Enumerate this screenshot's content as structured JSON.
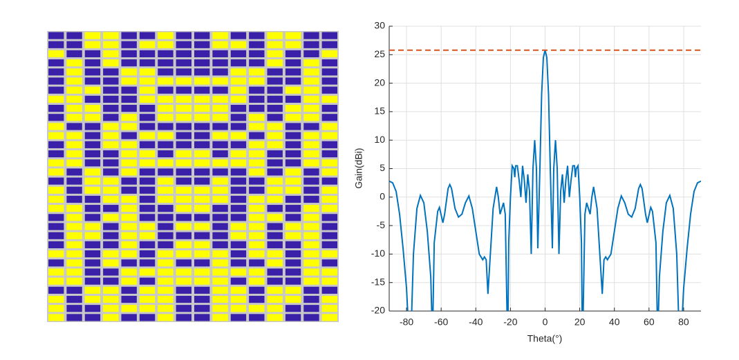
{
  "chart_data": [
    {
      "type": "heatmap",
      "colors": [
        "#ffff00",
        "#3a1fa8"
      ],
      "z": [
        [
          1,
          1,
          0,
          0,
          1,
          1,
          0,
          1,
          1,
          0,
          1,
          1,
          0,
          0,
          1,
          1
        ],
        [
          1,
          1,
          0,
          0,
          1,
          0,
          0,
          1,
          1,
          0,
          0,
          1,
          0,
          0,
          1,
          1
        ],
        [
          0,
          1,
          1,
          0,
          1,
          1,
          1,
          1,
          1,
          1,
          1,
          1,
          0,
          1,
          1,
          0
        ],
        [
          1,
          0,
          1,
          0,
          1,
          1,
          1,
          1,
          1,
          1,
          1,
          1,
          0,
          1,
          0,
          1
        ],
        [
          1,
          0,
          1,
          1,
          0,
          0,
          1,
          1,
          1,
          1,
          0,
          0,
          1,
          1,
          0,
          1
        ],
        [
          1,
          0,
          1,
          1,
          0,
          0,
          0,
          0,
          0,
          0,
          0,
          0,
          1,
          1,
          0,
          1
        ],
        [
          1,
          0,
          0,
          1,
          1,
          0,
          1,
          1,
          1,
          1,
          0,
          1,
          1,
          0,
          0,
          1
        ],
        [
          0,
          0,
          1,
          1,
          1,
          0,
          0,
          0,
          0,
          0,
          0,
          1,
          1,
          1,
          0,
          0
        ],
        [
          1,
          0,
          0,
          1,
          1,
          1,
          0,
          0,
          0,
          0,
          1,
          1,
          1,
          0,
          0,
          1
        ],
        [
          1,
          0,
          0,
          1,
          0,
          1,
          0,
          0,
          0,
          0,
          1,
          0,
          1,
          0,
          0,
          1
        ],
        [
          0,
          1,
          1,
          0,
          0,
          1,
          1,
          1,
          1,
          1,
          1,
          0,
          0,
          1,
          1,
          0
        ],
        [
          0,
          0,
          1,
          0,
          1,
          0,
          0,
          1,
          1,
          0,
          0,
          1,
          0,
          1,
          0,
          0
        ],
        [
          1,
          0,
          1,
          0,
          0,
          1,
          1,
          1,
          1,
          1,
          1,
          0,
          0,
          1,
          0,
          1
        ],
        [
          1,
          0,
          1,
          1,
          0,
          0,
          1,
          0,
          0,
          1,
          0,
          0,
          1,
          1,
          0,
          1
        ],
        [
          0,
          0,
          1,
          1,
          0,
          0,
          0,
          0,
          0,
          0,
          0,
          0,
          1,
          1,
          0,
          0
        ],
        [
          0,
          1,
          0,
          1,
          0,
          1,
          1,
          1,
          1,
          1,
          1,
          0,
          1,
          0,
          1,
          0
        ],
        [
          1,
          1,
          0,
          0,
          1,
          1,
          0,
          1,
          1,
          0,
          1,
          1,
          0,
          0,
          1,
          1
        ],
        [
          0,
          1,
          0,
          0,
          1,
          1,
          0,
          0,
          0,
          0,
          1,
          1,
          0,
          0,
          1,
          0
        ],
        [
          0,
          1,
          1,
          0,
          0,
          1,
          0,
          0,
          0,
          0,
          1,
          0,
          0,
          1,
          1,
          0
        ],
        [
          0,
          0,
          1,
          1,
          0,
          1,
          1,
          0,
          0,
          1,
          1,
          0,
          1,
          1,
          0,
          0
        ],
        [
          1,
          0,
          1,
          0,
          0,
          1,
          1,
          1,
          1,
          1,
          1,
          0,
          0,
          1,
          0,
          1
        ],
        [
          1,
          0,
          0,
          1,
          0,
          0,
          1,
          0,
          0,
          1,
          0,
          0,
          1,
          0,
          0,
          1
        ],
        [
          1,
          0,
          0,
          1,
          0,
          0,
          1,
          1,
          1,
          1,
          0,
          0,
          1,
          0,
          0,
          1
        ],
        [
          1,
          0,
          1,
          1,
          0,
          1,
          1,
          0,
          0,
          1,
          1,
          0,
          1,
          1,
          0,
          1
        ],
        [
          0,
          0,
          1,
          0,
          0,
          1,
          0,
          0,
          0,
          0,
          1,
          0,
          0,
          1,
          0,
          0
        ],
        [
          1,
          0,
          1,
          0,
          1,
          1,
          0,
          1,
          1,
          0,
          1,
          1,
          0,
          1,
          0,
          1
        ],
        [
          0,
          0,
          1,
          1,
          0,
          0,
          0,
          0,
          0,
          0,
          0,
          0,
          1,
          1,
          0,
          0
        ],
        [
          0,
          0,
          1,
          1,
          0,
          1,
          0,
          0,
          0,
          0,
          1,
          0,
          1,
          1,
          0,
          0
        ],
        [
          1,
          1,
          0,
          0,
          1,
          0,
          0,
          1,
          1,
          0,
          0,
          1,
          0,
          0,
          1,
          1
        ],
        [
          0,
          1,
          0,
          0,
          1,
          0,
          0,
          1,
          1,
          0,
          0,
          1,
          0,
          0,
          1,
          0
        ],
        [
          0,
          1,
          1,
          0,
          0,
          0,
          0,
          1,
          1,
          0,
          0,
          0,
          0,
          1,
          1,
          0
        ],
        [
          0,
          1,
          1,
          0,
          1,
          1,
          0,
          1,
          1,
          0,
          1,
          1,
          0,
          1,
          1,
          0
        ]
      ]
    },
    {
      "type": "line",
      "xlabel": "Theta(°)",
      "ylabel": "Gain(dBi)",
      "xlim": [
        -90,
        90
      ],
      "ylim": [
        -20,
        30
      ],
      "xticks": [
        -80,
        -60,
        -40,
        -20,
        0,
        20,
        40,
        60,
        80
      ],
      "yticks": [
        -20,
        -15,
        -10,
        -5,
        0,
        5,
        10,
        15,
        20,
        25,
        30
      ],
      "grid": true,
      "reference_line": {
        "value": 25.8,
        "color": "#d95319"
      },
      "x": [
        -90,
        -88,
        -86,
        -84,
        -82,
        -80,
        -79,
        -77.5,
        -76,
        -74,
        -72,
        -70,
        -68,
        -66,
        -65,
        -64,
        -62,
        -61,
        -59,
        -58,
        -56,
        -55,
        -54,
        -52,
        -50,
        -48,
        -46,
        -44,
        -42,
        -40,
        -38,
        -36,
        -35,
        -34,
        -33,
        -32,
        -30,
        -28,
        -27,
        -26,
        -25,
        -24,
        -23,
        -22,
        -21.5,
        -21,
        -20,
        -19,
        -18,
        -17.5,
        -17,
        -16,
        -15,
        -14,
        -13,
        -12,
        -11,
        -10,
        -9,
        -8,
        -7,
        -6,
        -5,
        -4.2,
        -3,
        -2,
        -1,
        0,
        1,
        2,
        3,
        4.2,
        5,
        6,
        7,
        8,
        9,
        10,
        11,
        12,
        13,
        14,
        15,
        16,
        17,
        17.5,
        18,
        19,
        20,
        21,
        21.5,
        22,
        23,
        24,
        25,
        26,
        27,
        28,
        30,
        32,
        33,
        34,
        35,
        36,
        38,
        40,
        42,
        44,
        46,
        48,
        50,
        52,
        54,
        55,
        56,
        58,
        59,
        61,
        62,
        64,
        65,
        66,
        68,
        70,
        72,
        74,
        76,
        77.5,
        79,
        80,
        82,
        84,
        86,
        88,
        90
      ],
      "series": [
        {
          "name": "Gain",
          "color": "#0072bd",
          "values": [
            2.8,
            2.5,
            1,
            -3,
            -9,
            -16,
            -22,
            -25,
            -10,
            -2,
            0.3,
            -1,
            -6,
            -14,
            -25,
            -8,
            -2.5,
            -1.8,
            -4.5,
            -3,
            1.5,
            2.2,
            1.5,
            -2,
            -3.5,
            -3,
            -1,
            0.2,
            -2,
            -6,
            -10,
            -11,
            -10.5,
            -11,
            -17,
            -12,
            -2,
            1.8,
            0,
            -3,
            -2,
            -1,
            -3,
            -20,
            -25,
            -8,
            0,
            5.5,
            5,
            3.5,
            5.5,
            5.5,
            3,
            0,
            5.5,
            3,
            -1,
            4,
            1,
            -10,
            5,
            10,
            5,
            -9,
            5,
            18,
            24.5,
            25.8,
            24.5,
            18,
            5,
            -9,
            5,
            10,
            5,
            -10,
            1,
            4,
            -1,
            3,
            5.5,
            0,
            3,
            5.5,
            5.5,
            3.5,
            5,
            5.5,
            0,
            -8,
            -25,
            -20,
            -3,
            -1,
            -2,
            -3,
            0,
            1.8,
            -2,
            -12,
            -17,
            -11,
            -10.5,
            -11,
            -10,
            -6,
            -2,
            0.2,
            -1,
            -3,
            -3.5,
            -2,
            1.5,
            2.2,
            1.5,
            -3,
            -4.5,
            -1.8,
            -2.5,
            -8,
            -25,
            -14,
            -6,
            -1,
            0.3,
            -2,
            -10,
            -25,
            -22,
            -16,
            -9,
            -3,
            1,
            2.5,
            2.8
          ]
        }
      ]
    }
  ]
}
